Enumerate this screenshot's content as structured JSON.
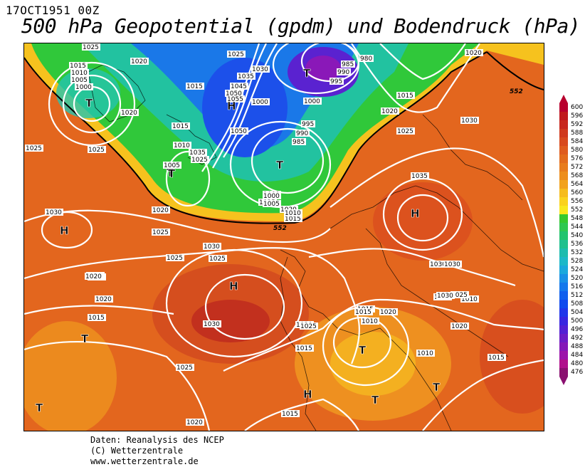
{
  "header": {
    "date": "17OCT1951 00Z",
    "title": "500 hPa Geopotential (gpdm) und Bodendruck (hPa)"
  },
  "legend": {
    "levels": [
      600,
      596,
      592,
      588,
      584,
      580,
      576,
      572,
      568,
      564,
      560,
      556,
      552,
      548,
      544,
      540,
      536,
      532,
      528,
      524,
      520,
      516,
      512,
      508,
      504,
      500,
      496,
      492,
      488,
      484,
      480,
      476
    ],
    "colors": [
      "#b8002e",
      "#c01a1e",
      "#c8281e",
      "#d03a1e",
      "#d84a1e",
      "#df5c1e",
      "#e36c1c",
      "#e87c1c",
      "#ed8e1c",
      "#f2a21c",
      "#f6bc1c",
      "#fad21c",
      "#f8e81c",
      "#36c92e",
      "#2ec850",
      "#22c46e",
      "#1fc08e",
      "#1cbcae",
      "#1cb8c8",
      "#1aa8dc",
      "#1890e6",
      "#1478ec",
      "#1060ee",
      "#104aee",
      "#2036ea",
      "#3826e0",
      "#5220d4",
      "#6c1cc6",
      "#8418b8",
      "#9c14aa",
      "#b0108c",
      "#8a1070"
    ]
  },
  "map": {
    "pressure_labels": [
      "1025",
      "1015",
      "1010",
      "1005",
      "1000",
      "1020",
      "1025",
      "1015",
      "1020",
      "1025",
      "1025",
      "1030",
      "1035",
      "1045",
      "1050",
      "1055",
      "1050",
      "1015",
      "1010",
      "1035",
      "1025",
      "1005",
      "1000",
      "995",
      "990",
      "985",
      "1000",
      "980",
      "985",
      "990",
      "995",
      "1000",
      "1020",
      "1015",
      "1020",
      "1025",
      "1030",
      "1035",
      "1030",
      "1025",
      "1020",
      "1015",
      "1010",
      "1005",
      "1000",
      "1025",
      "1030",
      "1020",
      "1025",
      "1030",
      "1025",
      "1020",
      "1015",
      "1010",
      "1015",
      "1010",
      "1015",
      "1020",
      "1025",
      "1030",
      "1025",
      "1020",
      "1015",
      "1015",
      "1020",
      "1010",
      "1015",
      "1030",
      "1025",
      "1030",
      "1025",
      "1025",
      "1020",
      "1015",
      "1020"
    ],
    "isoline_labels": [
      "552",
      "552"
    ],
    "centers": [
      "T",
      "T",
      "T",
      "H",
      "T",
      "T",
      "H",
      "H",
      "H",
      "T",
      "T",
      "T",
      "H",
      "T",
      "T"
    ]
  },
  "credits": {
    "line1": "Daten: Reanalysis des NCEP",
    "line2": "(C) Wetterzentrale",
    "line3": "www.wetterzentrale.de"
  }
}
